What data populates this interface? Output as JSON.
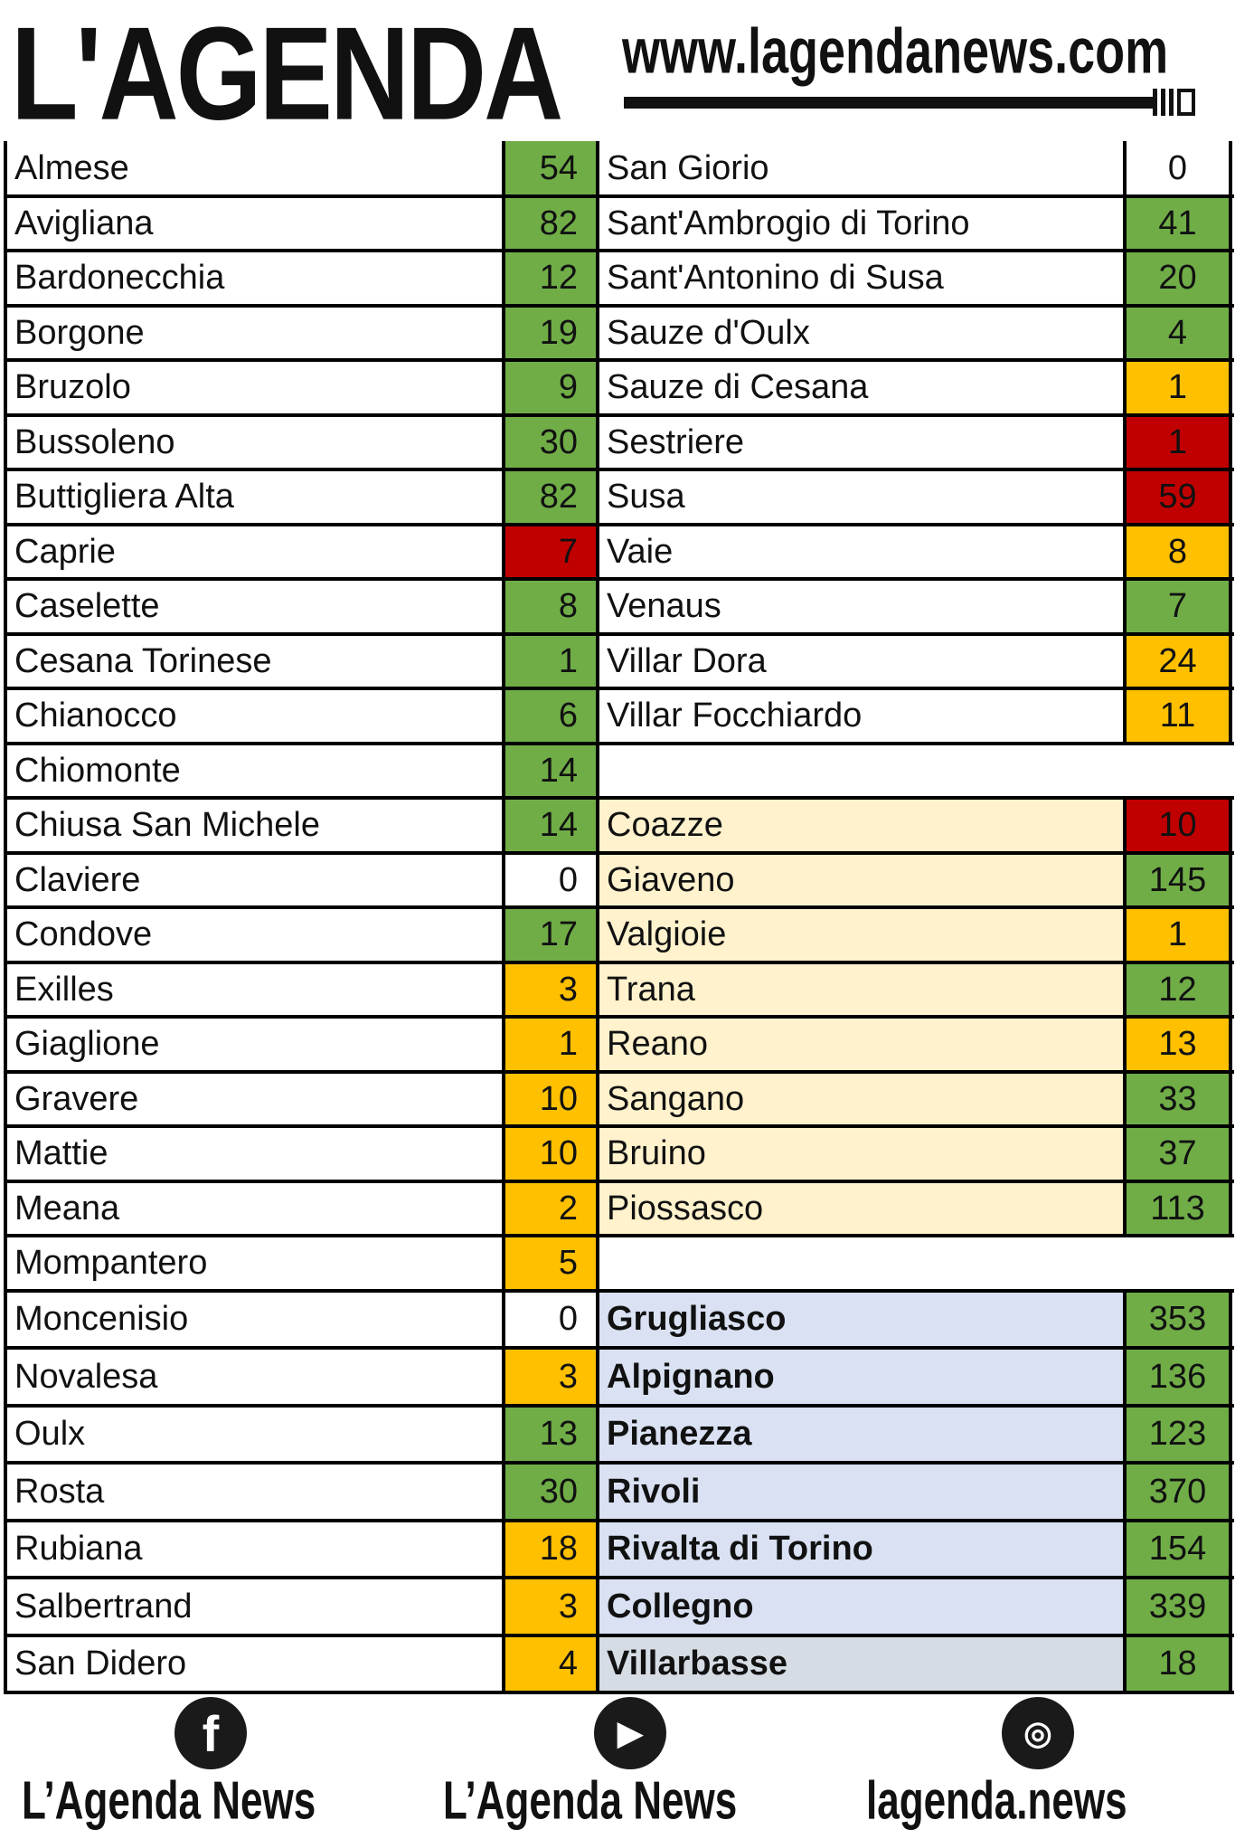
{
  "header": {
    "logo_text": "L'AGENDA",
    "url": "www.lagendanews.com"
  },
  "colors": {
    "green": "#70ad47",
    "orange": "#ffc000",
    "red": "#c00000",
    "white": "#ffffff",
    "cream": "#fff2cc",
    "blue": "#d9e1f2",
    "grey": "#d6dce4"
  },
  "left": [
    {
      "name": "Almese",
      "value": "54",
      "color": "green"
    },
    {
      "name": "Avigliana",
      "value": "82",
      "color": "green"
    },
    {
      "name": "Bardonecchia",
      "value": "12",
      "color": "green"
    },
    {
      "name": "Borgone",
      "value": "19",
      "color": "green"
    },
    {
      "name": "Bruzolo",
      "value": "9",
      "color": "green"
    },
    {
      "name": "Bussoleno",
      "value": "30",
      "color": "green"
    },
    {
      "name": "Buttigliera Alta",
      "value": "82",
      "color": "green"
    },
    {
      "name": "Caprie",
      "value": "7",
      "color": "red"
    },
    {
      "name": "Caselette",
      "value": "8",
      "color": "green"
    },
    {
      "name": "Cesana Torinese",
      "value": "1",
      "color": "green"
    },
    {
      "name": "Chianocco",
      "value": "6",
      "color": "green"
    },
    {
      "name": "Chiomonte",
      "value": "14",
      "color": "green"
    },
    {
      "name": "Chiusa San Michele",
      "value": "14",
      "color": "green"
    },
    {
      "name": "Claviere",
      "value": "0",
      "color": "white"
    },
    {
      "name": "Condove",
      "value": "17",
      "color": "green"
    },
    {
      "name": "Exilles",
      "value": "3",
      "color": "orange"
    },
    {
      "name": "Giaglione",
      "value": "1",
      "color": "orange"
    },
    {
      "name": "Gravere",
      "value": "10",
      "color": "orange"
    },
    {
      "name": "Mattie",
      "value": "10",
      "color": "orange"
    },
    {
      "name": "Meana",
      "value": "2",
      "color": "orange"
    },
    {
      "name": "Mompantero",
      "value": "5",
      "color": "orange"
    },
    {
      "name": "Moncenisio",
      "value": "0",
      "color": "white"
    },
    {
      "name": "Novalesa",
      "value": "3",
      "color": "orange"
    },
    {
      "name": "Oulx",
      "value": "13",
      "color": "green"
    },
    {
      "name": "Rosta",
      "value": "30",
      "color": "green"
    },
    {
      "name": "Rubiana",
      "value": "18",
      "color": "orange"
    },
    {
      "name": "Salbertrand",
      "value": "3",
      "color": "orange"
    },
    {
      "name": "San Didero",
      "value": "4",
      "color": "orange"
    }
  ],
  "right": [
    {
      "name": "San Giorio",
      "value": "0",
      "color": "white",
      "bg": "white"
    },
    {
      "name": "Sant'Ambrogio di Torino",
      "value": "41",
      "color": "green",
      "bg": "white"
    },
    {
      "name": "Sant'Antonino di Susa",
      "value": "20",
      "color": "green",
      "bg": "white"
    },
    {
      "name": "Sauze d'Oulx",
      "value": "4",
      "color": "green",
      "bg": "white"
    },
    {
      "name": "Sauze di Cesana",
      "value": "1",
      "color": "orange",
      "bg": "white"
    },
    {
      "name": "Sestriere",
      "value": "1",
      "color": "red",
      "bg": "white"
    },
    {
      "name": "Susa",
      "value": "59",
      "color": "red",
      "bg": "white"
    },
    {
      "name": "Vaie",
      "value": "8",
      "color": "orange",
      "bg": "white"
    },
    {
      "name": "Venaus",
      "value": "7",
      "color": "green",
      "bg": "white"
    },
    {
      "name": "Villar Dora",
      "value": "24",
      "color": "orange",
      "bg": "white"
    },
    {
      "name": "Villar Focchiardo",
      "value": "11",
      "color": "orange",
      "bg": "white"
    },
    null,
    {
      "name": "Coazze",
      "value": "10",
      "color": "red",
      "bg": "cream"
    },
    {
      "name": "Giaveno",
      "value": "145",
      "color": "green",
      "bg": "cream"
    },
    {
      "name": "Valgioie",
      "value": "1",
      "color": "orange",
      "bg": "cream"
    },
    {
      "name": "Trana",
      "value": "12",
      "color": "green",
      "bg": "cream"
    },
    {
      "name": "Reano",
      "value": "13",
      "color": "orange",
      "bg": "cream"
    },
    {
      "name": "Sangano",
      "value": "33",
      "color": "green",
      "bg": "cream"
    },
    {
      "name": "Bruino",
      "value": "37",
      "color": "green",
      "bg": "cream"
    },
    {
      "name": "Piossasco",
      "value": "113",
      "color": "green",
      "bg": "cream"
    },
    null,
    {
      "name": "Grugliasco",
      "value": "353",
      "color": "green",
      "bg": "blue",
      "bold": true
    },
    {
      "name": "Alpignano",
      "value": "136",
      "color": "green",
      "bg": "blue",
      "bold": true
    },
    {
      "name": "Pianezza",
      "value": "123",
      "color": "green",
      "bg": "blue",
      "bold": true
    },
    {
      "name": "Rivoli",
      "value": "370",
      "color": "green",
      "bg": "blue",
      "bold": true
    },
    {
      "name": "Rivalta di Torino",
      "value": "154",
      "color": "green",
      "bg": "blue",
      "bold": true
    },
    {
      "name": "Collegno",
      "value": "339",
      "color": "green",
      "bg": "blue",
      "bold": true
    },
    {
      "name": "Villarbasse",
      "value": "18",
      "color": "green",
      "bg": "grey",
      "bold": true
    }
  ],
  "footer": [
    {
      "icon": "facebook-icon",
      "label": "L’Agenda News"
    },
    {
      "icon": "youtube-icon",
      "label": "L’Agenda News"
    },
    {
      "icon": "instagram-icon",
      "label": "lagenda.news"
    }
  ]
}
